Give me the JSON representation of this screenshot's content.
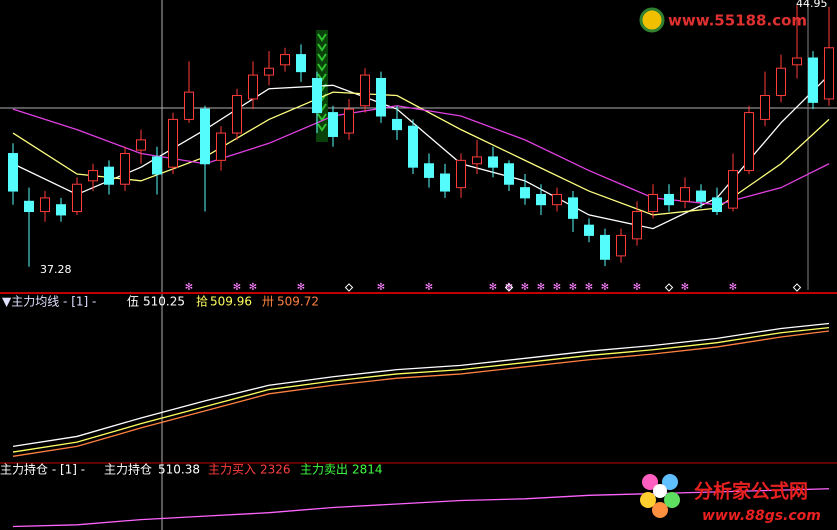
{
  "chart_data": [
    {
      "type": "candlestick",
      "ylim": [
        36.6,
        45.1
      ],
      "open": [
        40.6,
        39.2,
        38.9,
        39.1,
        38.9,
        39.8,
        40.2,
        39.7,
        40.7,
        40.5,
        40.2,
        41.6,
        41.9,
        40.4,
        41.2,
        42.2,
        42.9,
        43.2,
        43.5,
        42.8,
        41.8,
        41.2,
        42.0,
        42.8,
        41.6,
        41.4,
        40.3,
        40.0,
        39.6,
        40.3,
        40.5,
        40.3,
        39.6,
        39.4,
        39.1,
        39.3,
        38.5,
        38.2,
        37.6,
        38.1,
        38.9,
        39.4,
        39.2,
        39.5,
        39.3,
        39.0,
        40.1,
        41.6,
        42.3,
        43.2,
        43.4,
        42.2
      ],
      "high": [
        40.9,
        39.6,
        39.5,
        39.3,
        39.9,
        40.3,
        40.4,
        40.8,
        41.3,
        40.8,
        41.8,
        43.3,
        42.0,
        41.4,
        42.5,
        43.3,
        43.6,
        43.7,
        43.8,
        43.0,
        42.0,
        42.2,
        43.1,
        43.0,
        42.0,
        41.6,
        40.6,
        40.3,
        40.6,
        41.0,
        40.8,
        40.4,
        40.0,
        39.7,
        39.6,
        39.5,
        38.7,
        38.4,
        38.4,
        39.2,
        39.7,
        39.7,
        39.9,
        39.7,
        39.6,
        40.6,
        42.0,
        43.0,
        43.5,
        44.95,
        43.6,
        44.9
      ],
      "low": [
        39.1,
        37.28,
        38.6,
        38.6,
        38.8,
        39.5,
        39.4,
        39.5,
        40.3,
        39.4,
        40.0,
        41.5,
        38.9,
        40.1,
        41.0,
        41.9,
        42.6,
        43.0,
        42.7,
        41.2,
        40.8,
        41.0,
        41.8,
        41.5,
        41.0,
        40.0,
        39.6,
        39.3,
        39.3,
        40.0,
        39.9,
        39.5,
        39.1,
        38.8,
        38.9,
        38.3,
        38.0,
        37.3,
        37.4,
        37.9,
        38.7,
        38.9,
        39.0,
        39.0,
        38.8,
        38.9,
        40.0,
        41.4,
        42.1,
        42.8,
        41.9,
        42.0
      ],
      "close": [
        39.5,
        38.9,
        39.3,
        38.8,
        39.7,
        40.1,
        39.7,
        40.6,
        41.0,
        40.0,
        41.6,
        42.4,
        40.3,
        41.2,
        42.3,
        42.9,
        43.1,
        43.5,
        43.0,
        41.8,
        41.1,
        41.9,
        42.9,
        41.7,
        41.3,
        40.2,
        39.9,
        39.5,
        40.4,
        40.5,
        40.2,
        39.7,
        39.3,
        39.1,
        39.4,
        38.7,
        38.2,
        37.5,
        38.2,
        38.9,
        39.4,
        39.1,
        39.6,
        39.2,
        38.9,
        40.1,
        41.8,
        42.3,
        43.1,
        43.4,
        42.1,
        43.7
      ],
      "up_color": "#ff3c3c",
      "down_color": "#54fcfc",
      "series": [
        {
          "color": "#ffffff",
          "x": [
            0,
            4,
            8,
            12,
            16,
            20,
            24,
            28,
            32,
            36,
            40,
            44,
            48,
            51
          ],
          "values": [
            40.3,
            39.4,
            40.2,
            41.3,
            42.5,
            42.6,
            41.9,
            40.3,
            39.8,
            38.8,
            38.4,
            39.3,
            41.5,
            42.9
          ]
        },
        {
          "color": "#ffff80",
          "x": [
            0,
            4,
            8,
            12,
            16,
            20,
            24,
            28,
            32,
            36,
            40,
            44,
            48,
            51
          ],
          "values": [
            41.2,
            40.0,
            39.8,
            40.5,
            41.6,
            42.4,
            42.3,
            41.3,
            40.4,
            39.5,
            38.8,
            39.0,
            40.3,
            41.6
          ]
        },
        {
          "color": "#e040e0",
          "x": [
            0,
            4,
            8,
            12,
            16,
            20,
            24,
            28,
            32,
            36,
            40,
            44,
            48,
            51
          ],
          "values": [
            41.9,
            41.3,
            40.6,
            40.3,
            40.9,
            41.7,
            42.0,
            41.7,
            41.0,
            40.1,
            39.3,
            39.1,
            39.6,
            40.3
          ]
        }
      ],
      "annotations": [
        {
          "value": 44.95
        },
        {
          "value": 37.28
        }
      ],
      "star_signals": [
        11,
        14,
        15,
        18,
        23,
        26,
        30,
        31,
        32,
        33,
        34,
        35,
        36,
        37,
        39,
        42,
        45
      ],
      "diamond_signals": [
        21,
        31,
        41,
        49
      ]
    },
    {
      "type": "line",
      "title": "▼主力均线 - [1] -",
      "ylim": [
        500.5,
        511.2
      ],
      "series": [
        {
          "name": "伍",
          "color": "#ffffff",
          "x": [
            0,
            4,
            8,
            12,
            16,
            20,
            24,
            28,
            32,
            36,
            40,
            44,
            48,
            51
          ],
          "values": [
            501.6,
            502.3,
            503.6,
            504.8,
            505.9,
            506.5,
            507.0,
            507.3,
            507.8,
            508.3,
            508.7,
            509.2,
            509.9,
            510.25
          ]
        },
        {
          "name": "拾",
          "color": "#ffff60",
          "x": [
            0,
            4,
            8,
            12,
            16,
            20,
            24,
            28,
            32,
            36,
            40,
            44,
            48,
            51
          ],
          "values": [
            501.2,
            501.9,
            503.2,
            504.4,
            505.6,
            506.2,
            506.7,
            507.0,
            507.5,
            508.0,
            508.4,
            508.9,
            509.6,
            509.96
          ]
        },
        {
          "name": "卅",
          "color": "#ff8040",
          "x": [
            0,
            4,
            8,
            12,
            16,
            20,
            24,
            28,
            32,
            36,
            40,
            44,
            48,
            51
          ],
          "values": [
            500.9,
            501.6,
            502.9,
            504.1,
            505.3,
            505.9,
            506.4,
            506.7,
            507.2,
            507.7,
            508.1,
            508.6,
            509.3,
            509.72
          ]
        }
      ]
    },
    {
      "type": "line",
      "title": "主力持仓 - [1] -",
      "ylim": [
        508.0,
        511.0
      ],
      "series": [
        {
          "name": "主力持仓",
          "color": "#ff64ff",
          "x": [
            0,
            4,
            8,
            12,
            16,
            20,
            24,
            28,
            32,
            36,
            40,
            44,
            48,
            51
          ],
          "values": [
            508.2,
            508.3,
            508.6,
            508.8,
            509.0,
            509.3,
            509.5,
            509.7,
            509.8,
            510.0,
            510.1,
            510.2,
            510.3,
            510.38
          ]
        }
      ],
      "extras": [
        {
          "name": "主力买入",
          "value": 2326,
          "color": "#ff4040"
        },
        {
          "name": "主力卖出",
          "value": 2814,
          "color": "#40ff40"
        }
      ]
    }
  ],
  "watermarks": {
    "top": "www.55188.com",
    "bottom_title": "分析家公式网",
    "bottom_url": "www.88gs.com"
  }
}
